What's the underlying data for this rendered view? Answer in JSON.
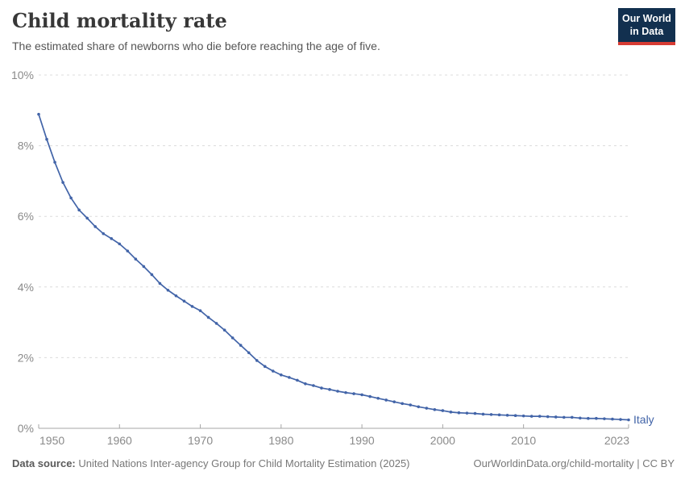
{
  "header": {
    "title": "Child mortality rate",
    "subtitle": "The estimated share of newborns who die before reaching the age of five.",
    "logo": {
      "line1": "Our World",
      "line2": "in Data"
    }
  },
  "footer": {
    "source_label": "Data source:",
    "source_text": "United Nations Inter-agency Group for Child Mortality Estimation (2025)",
    "right_text": "OurWorldinData.org/child-mortality | CC BY"
  },
  "colors": {
    "line": "#4264a8",
    "logo_bg": "#12304f",
    "logo_red": "#d73c34",
    "grid": "#dcdcdc",
    "axis": "#a5a5a5",
    "tick_label": "#8a8a8a"
  },
  "chart_data": {
    "type": "line",
    "title": "Child mortality rate",
    "subtitle": "The estimated share of newborns who die before reaching the age of five.",
    "xlabel": "",
    "ylabel": "",
    "xlim": [
      1950,
      2023
    ],
    "ylim": [
      0,
      10
    ],
    "xticks": [
      1950,
      1960,
      1970,
      1980,
      1990,
      2000,
      2010,
      2023
    ],
    "yticks": [
      0,
      2,
      4,
      6,
      8,
      10
    ],
    "ytick_suffix": "%",
    "grid": "horizontal-dashed",
    "legend": "end-of-line-label",
    "x": [
      1950,
      1951,
      1952,
      1953,
      1954,
      1955,
      1956,
      1957,
      1958,
      1959,
      1960,
      1961,
      1962,
      1963,
      1964,
      1965,
      1966,
      1967,
      1968,
      1969,
      1970,
      1971,
      1972,
      1973,
      1974,
      1975,
      1976,
      1977,
      1978,
      1979,
      1980,
      1981,
      1982,
      1983,
      1984,
      1985,
      1986,
      1987,
      1988,
      1989,
      1990,
      1991,
      1992,
      1993,
      1994,
      1995,
      1996,
      1997,
      1998,
      1999,
      2000,
      2001,
      2002,
      2003,
      2004,
      2005,
      2006,
      2007,
      2008,
      2009,
      2010,
      2011,
      2012,
      2013,
      2014,
      2015,
      2016,
      2017,
      2018,
      2019,
      2020,
      2021,
      2022,
      2023
    ],
    "series": [
      {
        "name": "Italy",
        "values": [
          8.89,
          8.18,
          7.53,
          6.96,
          6.52,
          6.18,
          5.95,
          5.71,
          5.51,
          5.37,
          5.22,
          5.02,
          4.79,
          4.58,
          4.35,
          4.1,
          3.91,
          3.75,
          3.6,
          3.45,
          3.33,
          3.14,
          2.97,
          2.78,
          2.56,
          2.35,
          2.14,
          1.92,
          1.75,
          1.62,
          1.51,
          1.44,
          1.36,
          1.26,
          1.21,
          1.14,
          1.1,
          1.05,
          1.01,
          0.98,
          0.95,
          0.9,
          0.85,
          0.8,
          0.75,
          0.7,
          0.66,
          0.61,
          0.57,
          0.53,
          0.5,
          0.46,
          0.44,
          0.43,
          0.42,
          0.4,
          0.39,
          0.38,
          0.37,
          0.36,
          0.35,
          0.34,
          0.34,
          0.33,
          0.32,
          0.31,
          0.31,
          0.29,
          0.28,
          0.28,
          0.27,
          0.26,
          0.25,
          0.24
        ]
      }
    ]
  }
}
